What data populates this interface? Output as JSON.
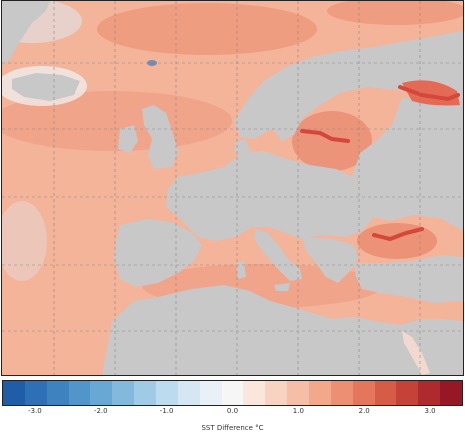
{
  "colorbar": {
    "label": "SST Difference °C",
    "min": -3.5,
    "max": 3.5,
    "ticks": [
      {
        "value": -3.0,
        "label": "-3.0"
      },
      {
        "value": -2.0,
        "label": "-2.0"
      },
      {
        "value": -1.0,
        "label": "-1.0"
      },
      {
        "value": 0.0,
        "label": "0.0"
      },
      {
        "value": 1.0,
        "label": "1.0"
      },
      {
        "value": 2.0,
        "label": "2.0"
      },
      {
        "value": 3.0,
        "label": "3.0"
      }
    ],
    "colors": [
      "#1f5da8",
      "#2f6fb5",
      "#3f82c0",
      "#5195cb",
      "#67a8d5",
      "#82b9dd",
      "#9fcbe6",
      "#bcdbee",
      "#d4e7f3",
      "#e8f1f7",
      "#f6f6f6",
      "#fbe6dc",
      "#f9d3c1",
      "#f6bea6",
      "#f3a78b",
      "#ec8f73",
      "#e3765c",
      "#d65c48",
      "#c44237",
      "#ae2a2c",
      "#961826"
    ]
  },
  "map": {
    "land_color": "#c8c8c8",
    "ocean_color": "#f3b49a",
    "grid_color": "#888888",
    "hotspot_color": "#d4473a",
    "coldspot_color": "#3a7cc1"
  }
}
